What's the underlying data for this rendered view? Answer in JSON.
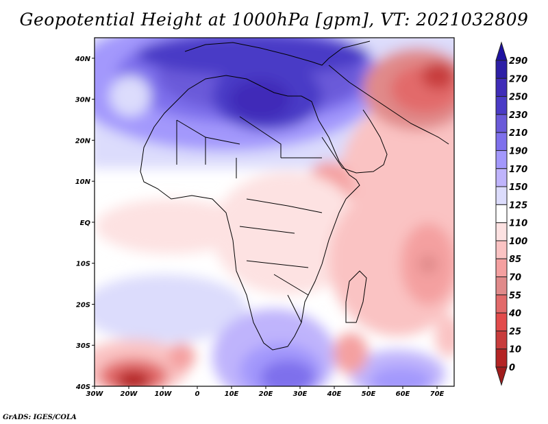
{
  "title": "Geopotential Height at 1000hPa [gpm], VT: 2021032809",
  "credit": "GrADS: IGES/COLA",
  "chart_data": {
    "type": "heatmap",
    "title": "Geopotential Height at 1000hPa [gpm], VT: 2021032809",
    "variable": "Geopotential Height",
    "level": "1000hPa",
    "units": "gpm",
    "valid_time": "2021032809",
    "region": "Africa",
    "lon_range": [
      -30,
      75
    ],
    "lat_range": [
      -40,
      45
    ],
    "x_ticks": [
      "30W",
      "20W",
      "10W",
      "0",
      "10E",
      "20E",
      "30E",
      "40E",
      "50E",
      "60E",
      "70E"
    ],
    "y_ticks": [
      "40N",
      "30N",
      "20N",
      "10N",
      "EQ",
      "10S",
      "20S",
      "30S",
      "40S"
    ],
    "colorbar": {
      "levels": [
        0,
        10,
        25,
        40,
        55,
        70,
        85,
        100,
        110,
        125,
        150,
        170,
        190,
        210,
        230,
        250,
        270,
        290
      ],
      "labels": [
        "290",
        "270",
        "250",
        "230",
        "210",
        "190",
        "170",
        "150",
        "125",
        "110",
        "100",
        "85",
        "70",
        "55",
        "40",
        "25",
        "10",
        "0"
      ],
      "colors_low_to_high": [
        "#a01c1c",
        "#b42424",
        "#c83c3c",
        "#e24b4b",
        "#e26a6a",
        "#e08a8a",
        "#f4a0a0",
        "#fac3c3",
        "#fde2e2",
        "#ffffff",
        "#dcdcfc",
        "#bfb4fc",
        "#a398fc",
        "#7e70ec",
        "#6a5ad9",
        "#4a3bc6",
        "#3f2cb8",
        "#2d1fa6",
        "#1e12a0"
      ],
      "extend": "both"
    },
    "features": [
      {
        "name": "high over Libya / Mediterranean",
        "approx_value_gpm": 270
      },
      {
        "name": "high over South Atlantic south of Africa",
        "approx_value_gpm": 210
      },
      {
        "name": "low over Pakistan / Afghanistan",
        "approx_value_gpm": 40
      },
      {
        "name": "low SW South Atlantic near 20W 40S",
        "approx_value_gpm": 10
      },
      {
        "name": "low over Indian Ocean near 70E 10S",
        "approx_value_gpm": 55
      }
    ]
  }
}
